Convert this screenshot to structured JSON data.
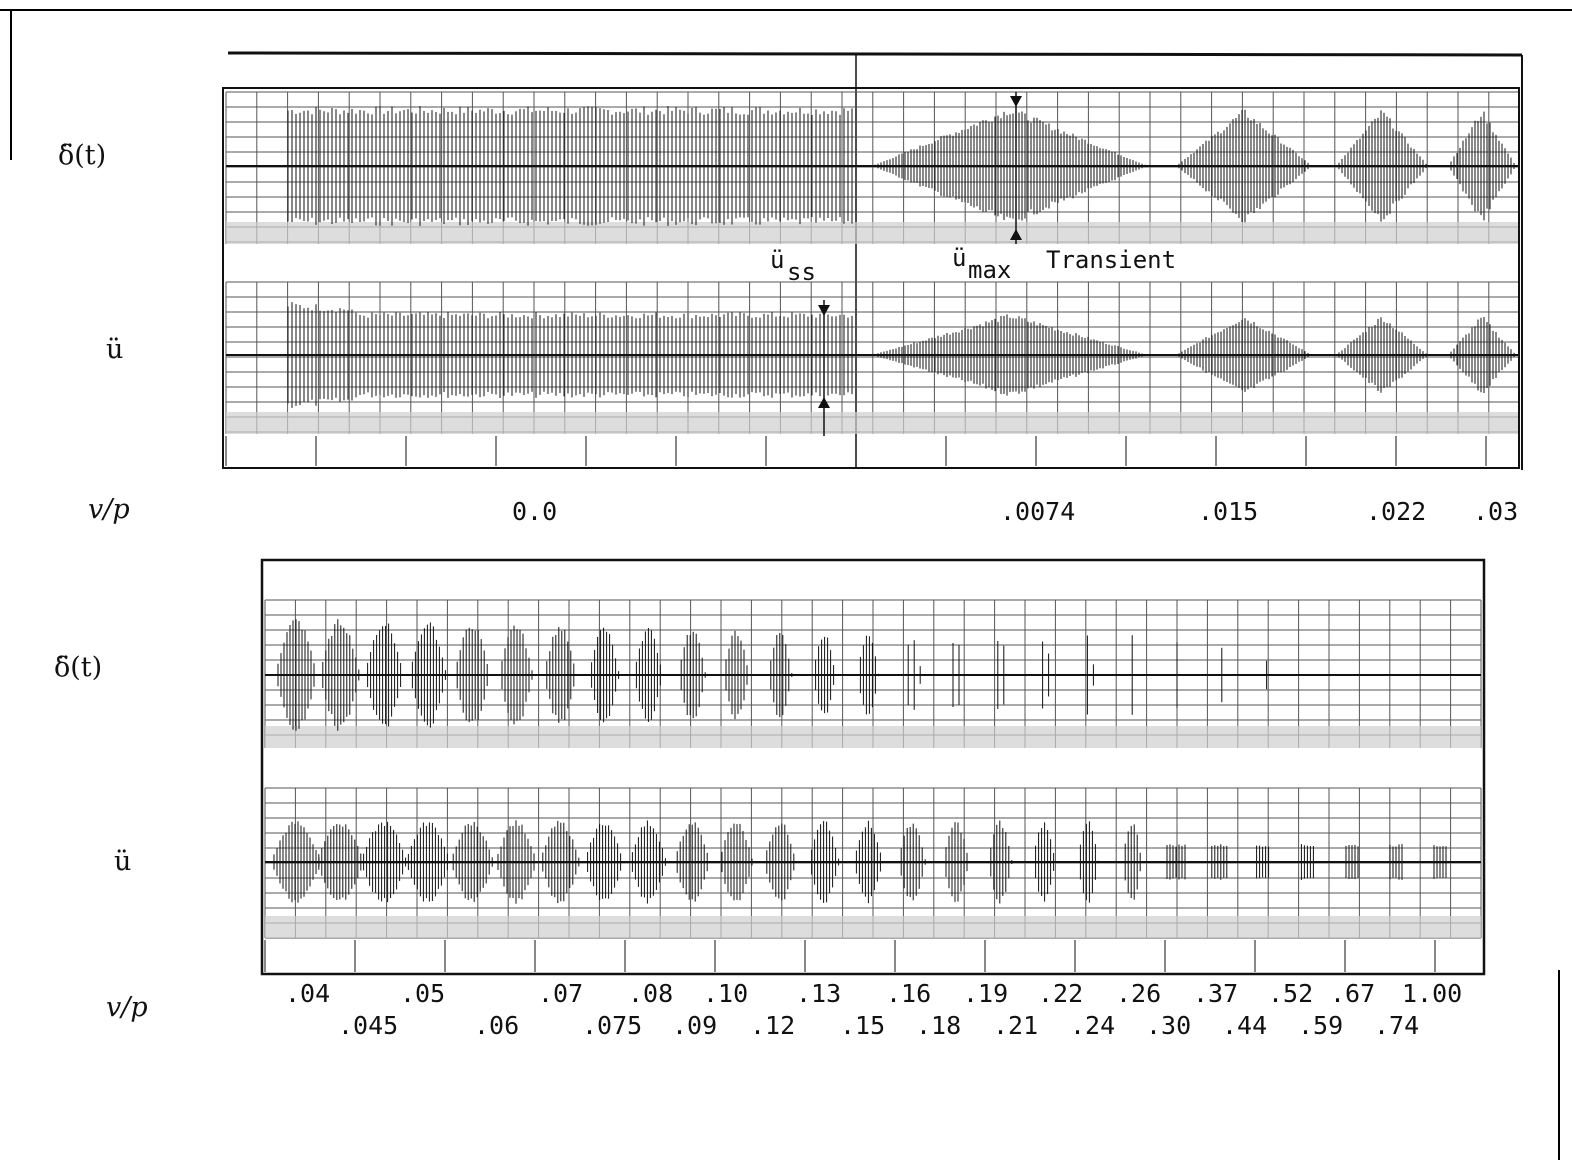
{
  "chart_data": [
    {
      "type": "line",
      "row_label": "v/p",
      "channels": [
        {
          "name": "δ̈(t)"
        },
        {
          "name": "ü"
        }
      ],
      "tick_labels": [
        {
          "text": "0.0",
          "value": 0.0
        },
        {
          "text": ".0074",
          "value": 0.0074
        },
        {
          "text": ".015",
          "value": 0.015
        },
        {
          "text": ".022",
          "value": 0.022
        },
        {
          "text": ".03",
          "value": 0.03
        }
      ],
      "annotations": [
        {
          "name": "ü_ss",
          "base": "ü",
          "sub": "ss"
        },
        {
          "name": "ü_max",
          "base": "ü",
          "sub": "max"
        },
        {
          "name": "transient",
          "text": "Transient"
        }
      ]
    },
    {
      "type": "line",
      "row_label": "v/p",
      "channels": [
        {
          "name": "δ̈(t)"
        },
        {
          "name": "ü"
        }
      ],
      "tick_labels_upper": [
        {
          "text": ".04",
          "value": 0.04
        },
        {
          "text": ".05",
          "value": 0.05
        },
        {
          "text": ".07",
          "value": 0.07
        },
        {
          "text": ".08",
          "value": 0.08
        },
        {
          "text": ".10",
          "value": 0.1
        },
        {
          "text": ".13",
          "value": 0.13
        },
        {
          "text": ".16",
          "value": 0.16
        },
        {
          "text": ".19",
          "value": 0.19
        },
        {
          "text": ".22",
          "value": 0.22
        },
        {
          "text": ".26",
          "value": 0.26
        },
        {
          "text": ".37",
          "value": 0.37
        },
        {
          "text": ".52",
          "value": 0.52
        },
        {
          "text": ".67",
          "value": 0.67
        },
        {
          "text": "1.00",
          "value": 1.0
        }
      ],
      "tick_labels_lower": [
        {
          "text": ".045",
          "value": 0.045
        },
        {
          "text": ".06",
          "value": 0.06
        },
        {
          "text": ".075",
          "value": 0.075
        },
        {
          "text": ".09",
          "value": 0.09
        },
        {
          "text": ".12",
          "value": 0.12
        },
        {
          "text": ".15",
          "value": 0.15
        },
        {
          "text": ".18",
          "value": 0.18
        },
        {
          "text": ".21",
          "value": 0.21
        },
        {
          "text": ".24",
          "value": 0.24
        },
        {
          "text": ".30",
          "value": 0.3
        },
        {
          "text": ".44",
          "value": 0.44
        },
        {
          "text": ".59",
          "value": 0.59
        },
        {
          "text": ".74",
          "value": 0.74
        }
      ]
    }
  ],
  "colors": {
    "ink": "#111111",
    "grid": "#555555",
    "paper": "#ffffff",
    "shade": "#cfcfcf"
  }
}
